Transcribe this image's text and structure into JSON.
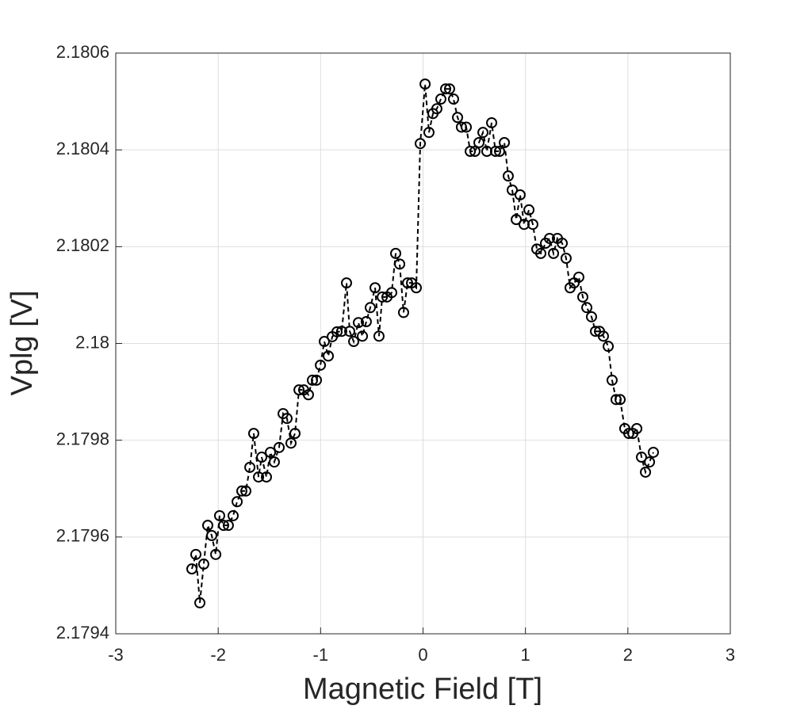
{
  "chart_data": {
    "type": "line",
    "xlabel": "Magnetic Field [T]",
    "ylabel": "Vplg [V]",
    "x": [
      -2.257,
      -2.218,
      -2.179,
      -2.141,
      -2.102,
      -2.063,
      -2.024,
      -1.986,
      -1.947,
      -1.901,
      -1.854,
      -1.815,
      -1.769,
      -1.73,
      -1.691,
      -1.653,
      -1.606,
      -1.575,
      -1.529,
      -1.49,
      -1.452,
      -1.405,
      -1.366,
      -1.328,
      -1.289,
      -1.25,
      -1.211,
      -1.165,
      -1.119,
      -1.08,
      -1.041,
      -1.002,
      -0.964,
      -0.925,
      -0.886,
      -0.84,
      -0.794,
      -0.747,
      -0.716,
      -0.677,
      -0.631,
      -0.592,
      -0.554,
      -0.515,
      -0.468,
      -0.43,
      -0.398,
      -0.352,
      -0.306,
      -0.267,
      -0.228,
      -0.19,
      -0.151,
      -0.112,
      -0.066,
      -0.027,
      0.02,
      0.058,
      0.097,
      0.135,
      0.174,
      0.221,
      0.259,
      0.298,
      0.337,
      0.375,
      0.422,
      0.461,
      0.507,
      0.546,
      0.585,
      0.623,
      0.67,
      0.708,
      0.747,
      0.794,
      0.832,
      0.871,
      0.91,
      0.948,
      0.987,
      1.034,
      1.072,
      1.111,
      1.15,
      1.196,
      1.235,
      1.274,
      1.312,
      1.359,
      1.397,
      1.436,
      1.475,
      1.521,
      1.56,
      1.599,
      1.645,
      1.684,
      1.723,
      1.761,
      1.808,
      1.846,
      1.885,
      1.924,
      1.97,
      2.009,
      2.048,
      2.087,
      2.133,
      2.172,
      2.211,
      2.249
    ],
    "series": [
      {
        "color": "#000000",
        "values": [
          2.179534,
          2.179564,
          2.179464,
          2.179544,
          2.179624,
          2.179603,
          2.179564,
          2.179644,
          2.179624,
          2.179624,
          2.179644,
          2.179673,
          2.179695,
          2.179695,
          2.179744,
          2.179814,
          2.179724,
          2.179765,
          2.179724,
          2.179775,
          2.179755,
          2.179785,
          2.179855,
          2.179845,
          2.179794,
          2.179814,
          2.179904,
          2.179904,
          2.179894,
          2.179924,
          2.179924,
          2.179955,
          2.180004,
          2.179974,
          2.180014,
          2.180024,
          2.180025,
          2.180125,
          2.180025,
          2.180004,
          2.180043,
          2.180015,
          2.180045,
          2.180074,
          2.180115,
          2.180015,
          2.180096,
          2.180096,
          2.180105,
          2.180186,
          2.180164,
          2.180064,
          2.180125,
          2.180125,
          2.180115,
          2.180413,
          2.180536,
          2.180436,
          2.180475,
          2.180485,
          2.180505,
          2.180526,
          2.180526,
          2.180505,
          2.180467,
          2.180447,
          2.180447,
          2.180397,
          2.180397,
          2.180415,
          2.180436,
          2.180397,
          2.180456,
          2.180397,
          2.180397,
          2.180415,
          2.180346,
          2.180317,
          2.180256,
          2.180307,
          2.180246,
          2.180276,
          2.180246,
          2.180195,
          2.180186,
          2.180207,
          2.180217,
          2.180186,
          2.180217,
          2.180207,
          2.180176,
          2.180115,
          2.180125,
          2.180137,
          2.180096,
          2.180074,
          2.180055,
          2.180025,
          2.180025,
          2.180015,
          2.179994,
          2.179924,
          2.179884,
          2.179884,
          2.179824,
          2.179814,
          2.179814,
          2.179824,
          2.179765,
          2.179734,
          2.179755,
          2.179775
        ]
      }
    ],
    "xlim": [
      -3,
      3
    ],
    "xticks": [
      -3,
      -2,
      -1,
      0,
      1,
      2,
      3
    ],
    "ylim": [
      2.1794,
      2.1806
    ],
    "yticks": [
      2.1794,
      2.1796,
      2.1798,
      2.18,
      2.1802,
      2.1804,
      2.1806
    ],
    "grid": true,
    "linestyle": "dashed",
    "marker": "circle"
  }
}
